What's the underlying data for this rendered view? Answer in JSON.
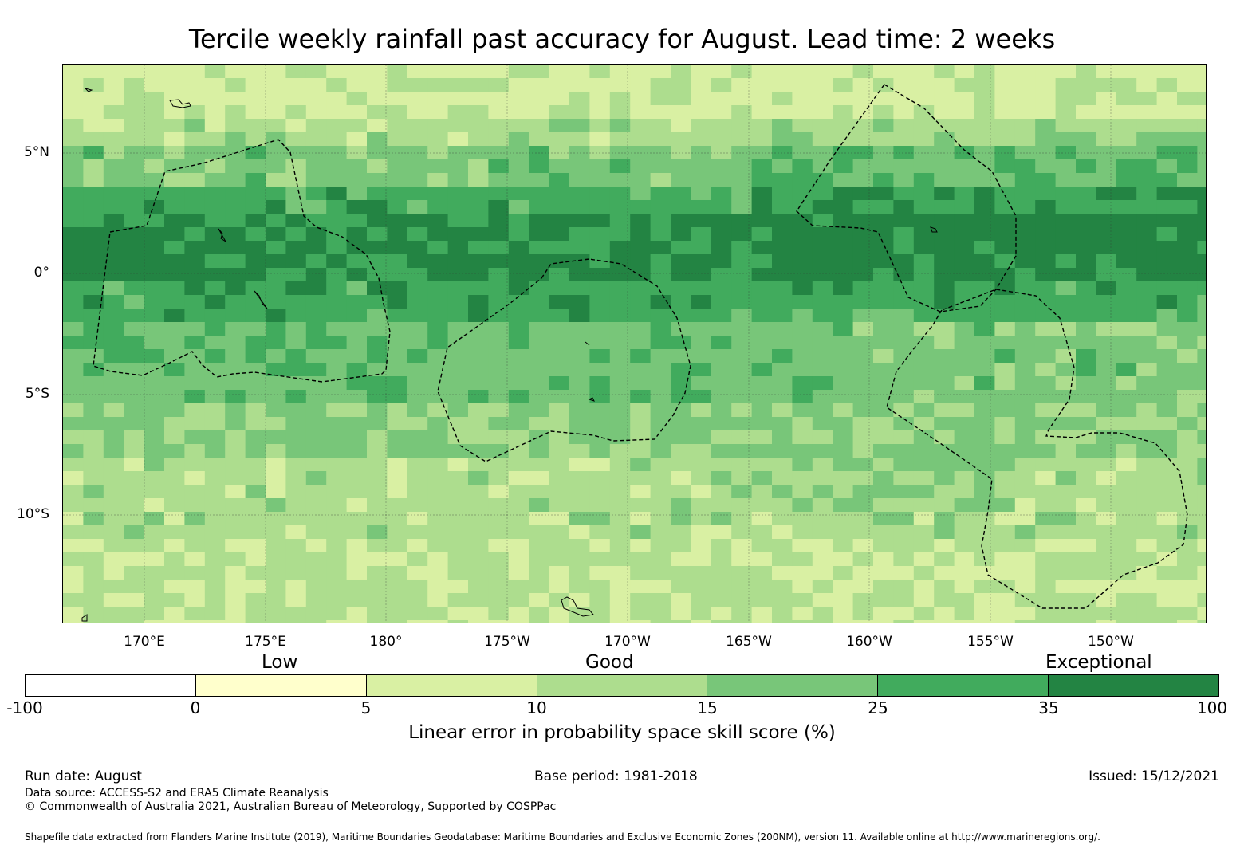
{
  "title": "Tercile weekly rainfall past accuracy for August. Lead time: 2 weeks",
  "map": {
    "lat_labels": [
      "5°N",
      "0°",
      "5°S",
      "10°S"
    ],
    "lon_labels": [
      "170°E",
      "175°E",
      "180°",
      "175°W",
      "170°W",
      "165°W",
      "160°W",
      "155°W",
      "150°W"
    ],
    "grid_lines": true,
    "eez_boundaries": "dashed"
  },
  "legend": {
    "categories": [
      "Low",
      "Good",
      "Exceptional"
    ],
    "ticks": [
      "-100",
      "0",
      "5",
      "10",
      "15",
      "25",
      "35",
      "100"
    ],
    "colors": [
      "#ffffff",
      "#ffffcc",
      "#d9f0a3",
      "#addd8e",
      "#78c679",
      "#41ab5d",
      "#238443"
    ],
    "label": "Linear error in probability space skill score (%)"
  },
  "footer": {
    "run_date": "Run date: August",
    "base_period": "Base period: 1981-2018",
    "issued": "Issued: 15/12/2021",
    "data_source": "Data source: ACCESS-S2 and ERA5 Climate Reanalysis",
    "copyright": "© Commonwealth of Australia 2021, Australian Bureau of Meteorology, Supported by COSPPac",
    "shapefile": "Shapefile data extracted from Flanders Marine Institute (2019), Maritime Boundaries Geodatabase: Maritime Boundaries and Exclusive Economic Zones (200NM), version 11. Available online at http://www.marineregions.org/."
  }
}
